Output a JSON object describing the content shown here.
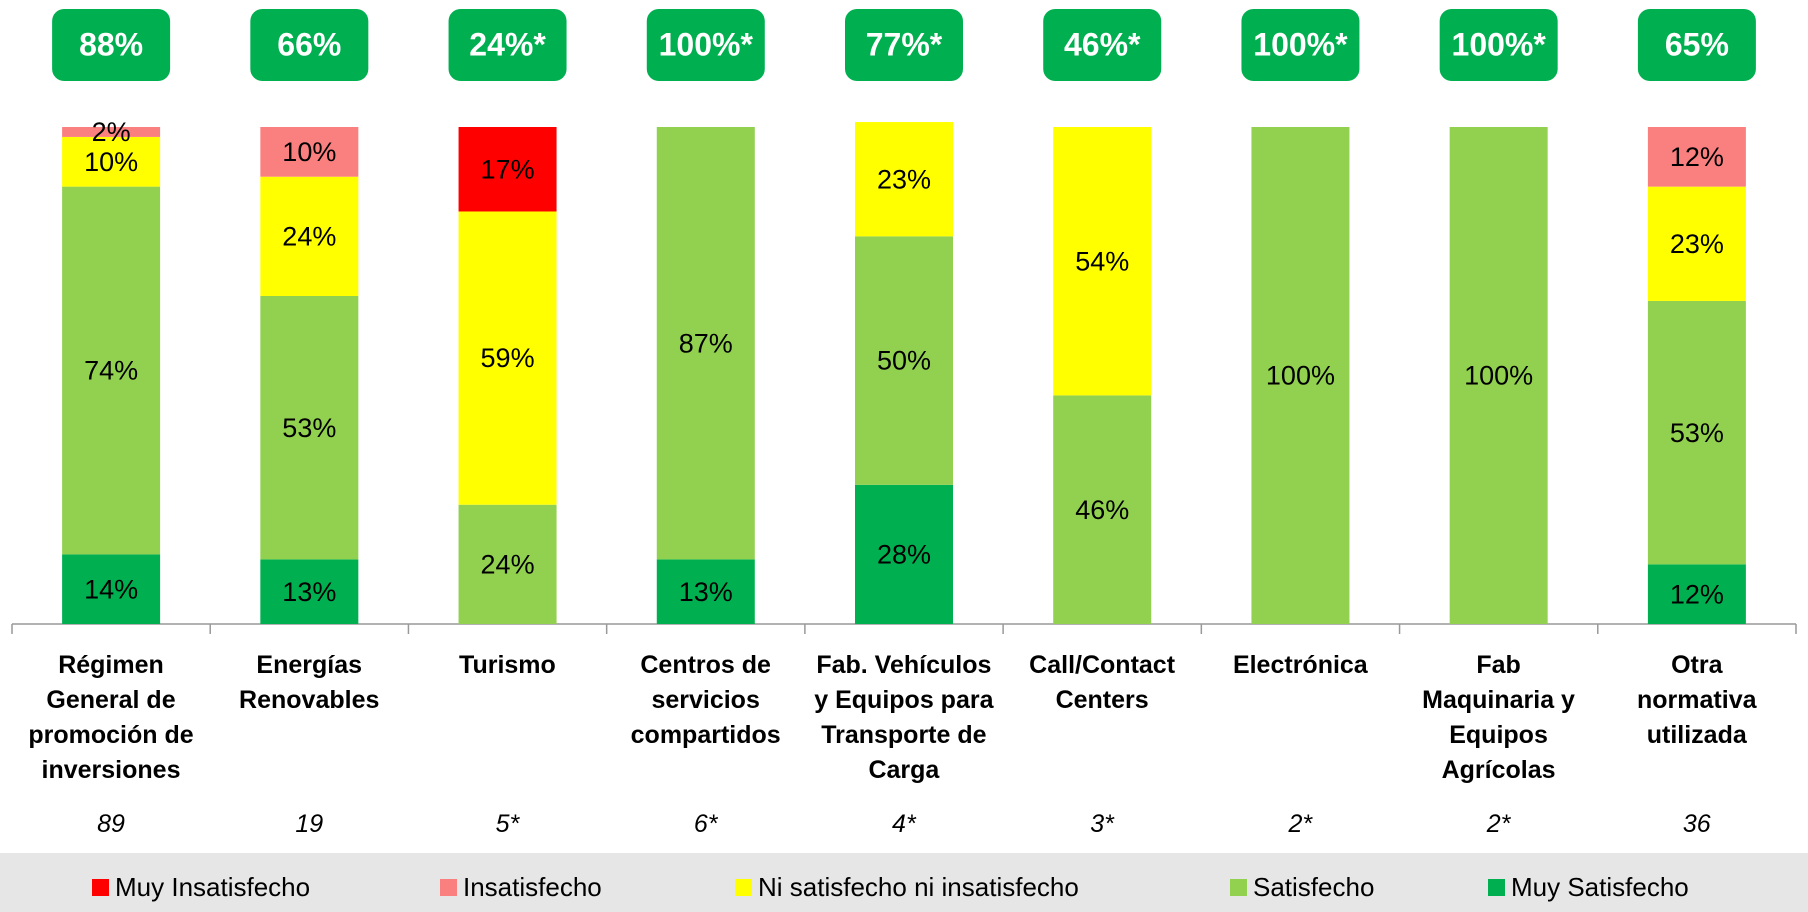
{
  "chart_data": {
    "type": "stacked_bar",
    "categories": [
      "Régimen\nGeneral de\npromoción de\ninversiones",
      "Energías\nRenovables",
      "Turismo",
      "Centros de\nservicios\ncompartidos",
      "Fab. Vehículos\ny Equipos para\nTransporte de\nCarga",
      "Call/Contact\nCenters",
      "Electrónica",
      "Fab\nMaquinaria y\nEquipos\nAgrícolas",
      "Otra\nnormativa\nutilizada"
    ],
    "badges": [
      "88%",
      "66%",
      "24%*",
      "100%*",
      "77%*",
      "46%*",
      "100%*",
      "100%*",
      "65%"
    ],
    "sample_sizes": [
      "89",
      "19",
      "5*",
      "6*",
      "4*",
      "3*",
      "2*",
      "2*",
      "36"
    ],
    "ylim": [
      0,
      100
    ],
    "legend": "bottom",
    "series": [
      {
        "name": "Muy Insatisfecho",
        "color": "#ff0000",
        "values": [
          0,
          0,
          17,
          0,
          0,
          0,
          0,
          0,
          0
        ],
        "value_labels": [
          null,
          null,
          "17%",
          null,
          null,
          null,
          null,
          null,
          null
        ]
      },
      {
        "name": "Insatisfecho",
        "color": "#fa8080",
        "values": [
          2,
          10,
          0,
          0,
          0,
          0,
          0,
          0,
          12
        ],
        "value_labels": [
          "2%",
          "10%",
          null,
          null,
          null,
          null,
          null,
          null,
          "12%"
        ]
      },
      {
        "name": "Ni satisfecho ni insatisfecho",
        "color": "#ffff00",
        "values": [
          10,
          24,
          59,
          0,
          23,
          54,
          0,
          0,
          23
        ],
        "value_labels": [
          "10%",
          "24%",
          "59%",
          null,
          "23%",
          "54%",
          null,
          null,
          "23%"
        ]
      },
      {
        "name": "Satisfecho",
        "color": "#92d050",
        "values": [
          74,
          53,
          24,
          87,
          50,
          46,
          100,
          100,
          53
        ],
        "value_labels": [
          "74%",
          "53%",
          "24%",
          "87%",
          "50%",
          "46%",
          "100%",
          "100%",
          "53%"
        ]
      },
      {
        "name": "Muy Satisfecho",
        "color": "#00b050",
        "values": [
          14,
          13,
          0,
          13,
          28,
          0,
          0,
          0,
          12
        ],
        "value_labels": [
          "14%",
          "13%",
          null,
          "13%",
          "28%",
          null,
          null,
          null,
          "12%"
        ]
      }
    ]
  }
}
